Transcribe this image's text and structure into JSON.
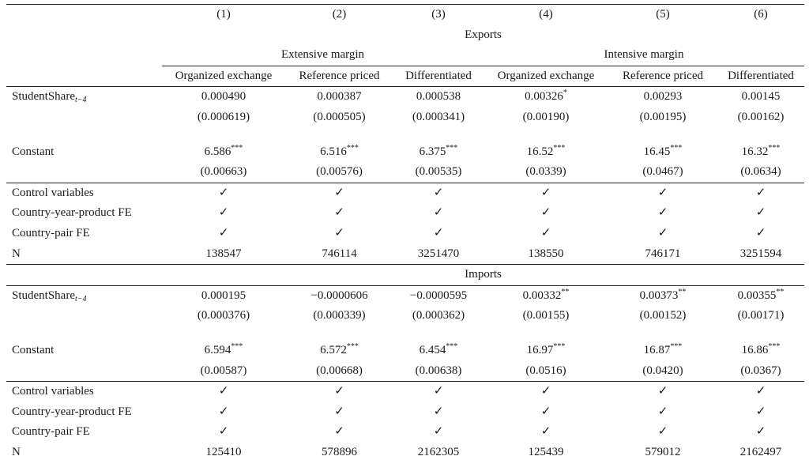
{
  "columns": [
    "(1)",
    "(2)",
    "(3)",
    "(4)",
    "(5)",
    "(6)"
  ],
  "panel_exports": "Exports",
  "panel_imports": "Imports",
  "margin_extensive": "Extensive margin",
  "margin_intensive": "Intensive margin",
  "subcolumns": [
    "Organized exchange",
    "Reference priced",
    "Differentiated",
    "Organized exchange",
    "Reference priced",
    "Differentiated"
  ],
  "labels": {
    "student_share": "StudentShare",
    "student_share_sub": "t−4",
    "constant": "Constant",
    "control": "Control variables",
    "cyp_fe": "Country-year-product FE",
    "cp_fe": "Country-pair FE",
    "n": "N"
  },
  "check": "✓",
  "exports": {
    "student_share": [
      {
        "v": "0.000490",
        "s": ""
      },
      {
        "v": "0.000387",
        "s": ""
      },
      {
        "v": "0.000538",
        "s": ""
      },
      {
        "v": "0.00326",
        "s": "*"
      },
      {
        "v": "0.00293",
        "s": ""
      },
      {
        "v": "0.00145",
        "s": ""
      }
    ],
    "student_share_se": [
      "(0.000619)",
      "(0.000505)",
      "(0.000341)",
      "(0.00190)",
      "(0.00195)",
      "(0.00162)"
    ],
    "constant": [
      {
        "v": "6.586",
        "s": "***"
      },
      {
        "v": "6.516",
        "s": "***"
      },
      {
        "v": "6.375",
        "s": "***"
      },
      {
        "v": "16.52",
        "s": "***"
      },
      {
        "v": "16.45",
        "s": "***"
      },
      {
        "v": "16.32",
        "s": "***"
      }
    ],
    "constant_se": [
      "(0.00663)",
      "(0.00576)",
      "(0.00535)",
      "(0.0339)",
      "(0.0467)",
      "(0.0634)"
    ],
    "n": [
      "138547",
      "746114",
      "3251470",
      "138550",
      "746171",
      "3251594"
    ]
  },
  "imports": {
    "student_share": [
      {
        "v": "0.000195",
        "s": ""
      },
      {
        "v": "−0.0000606",
        "s": ""
      },
      {
        "v": "−0.0000595",
        "s": ""
      },
      {
        "v": "0.00332",
        "s": "**"
      },
      {
        "v": "0.00373",
        "s": "**"
      },
      {
        "v": "0.00355",
        "s": "**"
      }
    ],
    "student_share_se": [
      "(0.000376)",
      "(0.000339)",
      "(0.000362)",
      "(0.00155)",
      "(0.00152)",
      "(0.00171)"
    ],
    "constant": [
      {
        "v": "6.594",
        "s": "***"
      },
      {
        "v": "6.572",
        "s": "***"
      },
      {
        "v": "6.454",
        "s": "***"
      },
      {
        "v": "16.97",
        "s": "***"
      },
      {
        "v": "16.87",
        "s": "***"
      },
      {
        "v": "16.86",
        "s": "***"
      }
    ],
    "constant_se": [
      "(0.00587)",
      "(0.00668)",
      "(0.00638)",
      "(0.0516)",
      "(0.0420)",
      "(0.0367)"
    ],
    "n": [
      "125410",
      "578896",
      "2162305",
      "125439",
      "579012",
      "2162497"
    ]
  }
}
